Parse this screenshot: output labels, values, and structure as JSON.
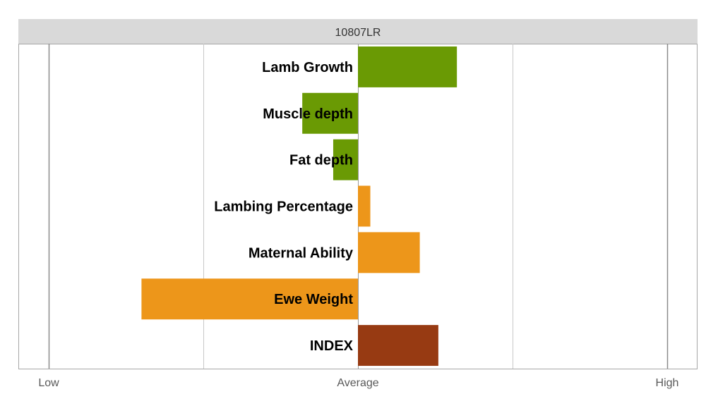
{
  "chart_data": {
    "type": "bar",
    "orientation": "horizontal",
    "title": "10807LR",
    "xlim": [
      -1,
      1
    ],
    "x_tick_labels": [
      "Low",
      "Average",
      "High"
    ],
    "grid": true,
    "categories": [
      "Lamb Growth",
      "Muscle depth",
      "Fat depth",
      "Lambing Percentage",
      "Maternal Ability",
      "Ewe Weight",
      "INDEX"
    ],
    "values": [
      0.32,
      -0.18,
      -0.08,
      0.04,
      0.2,
      -0.7,
      0.26
    ],
    "colors": [
      "#6a9a04",
      "#6a9a04",
      "#6a9a04",
      "#ed961a",
      "#ed961a",
      "#ed961a",
      "#973a12"
    ]
  }
}
